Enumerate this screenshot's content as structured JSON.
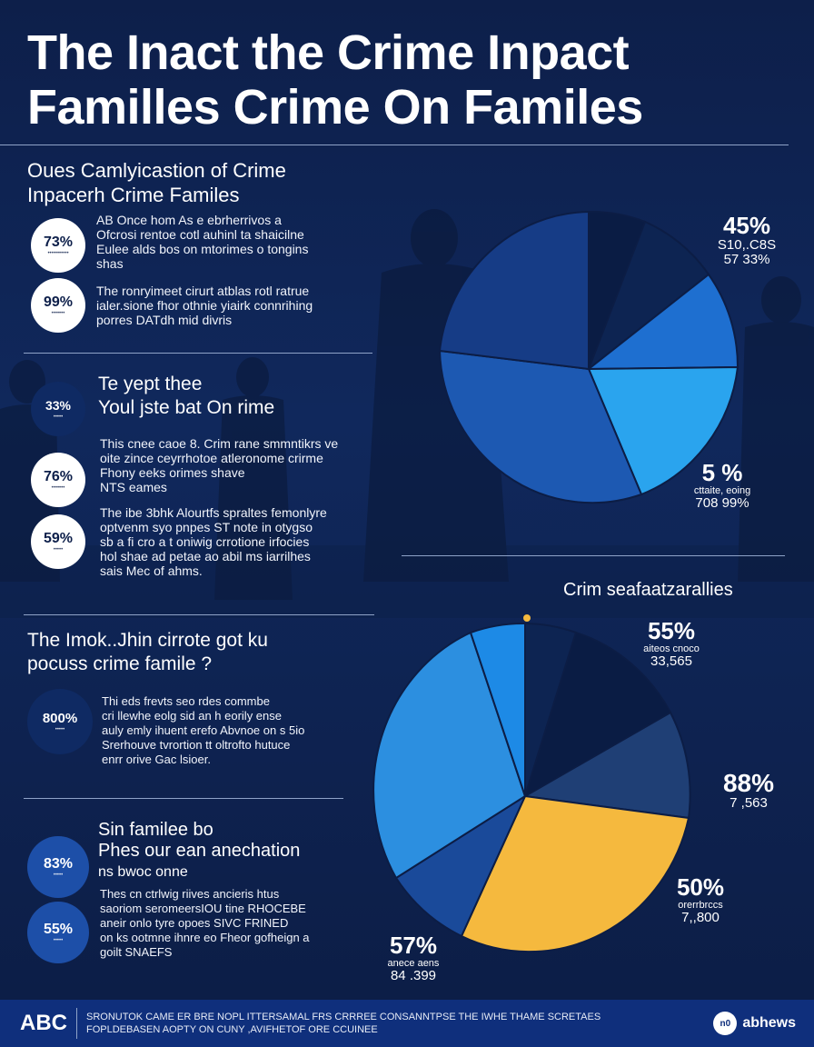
{
  "title": {
    "line1": "The Inact the Crime Inpact",
    "line2": "Familles Crime On Familes"
  },
  "section1": {
    "heading1": "Oues Camlyicastion  of Crime",
    "heading2": "Inpacerh Crime Familes",
    "items": [
      {
        "pct": "73%",
        "cap": "",
        "text": [
          "AB Once hom As e ebrherrivos a",
          "Ofcrosi rentoe cotl auhinl ta shaicilne",
          "Eulee alds bos on mtorimes o tongins",
          "shas"
        ]
      },
      {
        "pct": "99%",
        "cap": "",
        "text": [
          "The ronryimeet cirurt atblas rotl ratrue",
          "ialer.sione fhor othnie yiairk connrihing",
          "porres DATdh mid divris"
        ]
      }
    ]
  },
  "section2": {
    "heading1": "Te yept thee",
    "heading2": "Youl jste bat On rime",
    "items": [
      {
        "pct": "33%",
        "cap": "",
        "style": "dark",
        "text": []
      },
      {
        "pct": "76%",
        "cap": "",
        "style": "light",
        "text": [
          "This cnee caoe 8. Crim rane smmntikrs ve",
          "oite zince ceyrrhotoe atleronome crirme",
          "Fhony eeks orimes shave",
          "NTS eames"
        ]
      },
      {
        "pct": "59%",
        "cap": "",
        "style": "light",
        "text": [
          "The ibe 3bhk Alourtfs spraltes femonlyre",
          "optvenm syo pnpes ST note in otygso",
          "sb a fi cro a t oniwig crrotione irfocies",
          "hol shae ad petae ao abil ms iarrilhes",
          "sais Mec of ahms."
        ]
      }
    ]
  },
  "section3": {
    "heading1": "The Imok..Jhin cirrote got ku",
    "heading2": "pocuss crime famile ?",
    "items": [
      {
        "pct": "800%",
        "cap": "",
        "style": "dark",
        "text": [
          "Thi eds frevts seo rdes commbe",
          "cri llewhe eolg sid an h eorily ense",
          "auly emly ihuent erefo Abvnoe on s 5io",
          "Srerhouve tvrortion tt oltrofto hutuce",
          "enrr orive Gac lsioer."
        ]
      }
    ]
  },
  "section4": {
    "heading1": "Sin familee bo",
    "heading2": "Phes our ean anechation",
    "heading3": "ns bwoc onne",
    "items": [
      {
        "pct": "83%",
        "cap": "",
        "style": "blue",
        "text": []
      },
      {
        "pct": "55%",
        "cap": "",
        "style": "blue",
        "text": [
          "Thes cn ctrlwig riives ancieris htus",
          "saoriom seromeersIOU tine RHOCEBE",
          "aneir onlo tyre opoes SIVC FRINED",
          "on ks ootmne ihnre eo Fheor gofheign a",
          "goilt SNAEFS"
        ]
      }
    ]
  },
  "pie1": {
    "labels": [
      {
        "v": "45%",
        "s": "S10,.C8S",
        "s2": "57 33%"
      },
      {
        "v": "5 %",
        "s": "cttaite, eoing",
        "s2": "708 99%"
      }
    ],
    "colors": [
      "#0a1c44",
      "#0d2452",
      "#1e6fd0",
      "#2aa4ee",
      "#1d59b2",
      "#163c86"
    ]
  },
  "pie2": {
    "heading": "Crim seafaatzarallies",
    "labels": [
      {
        "v": "55%",
        "s": "aiteos cnoco",
        "s2": "33,565"
      },
      {
        "v": "88%",
        "s": "",
        "s2": "7 ,563"
      },
      {
        "v": "50%",
        "s": "orerrbrccs",
        "s2": "7,,800"
      },
      {
        "v": "57%",
        "s": "anece aens",
        "s2": "84 .399"
      }
    ],
    "colors": [
      "#0d2452",
      "#0a1c44",
      "#1f3f75",
      "#f5b93e",
      "#1a4a9a",
      "#2c8fe0",
      "#1d5fc0"
    ]
  },
  "footer": {
    "logo": "ABC",
    "line1": "SRONUTOK CAME ER BRE NOPL ITTERSAMAL FRS CRRREE CONSANNTPSE THE IWHE THAME SCRETAES",
    "line2": "FOPLDEBASEN AOPTY ON CUNY ,AVIFHETOF ORE CCUINEE",
    "icon": "n0",
    "brand": "abhews"
  }
}
